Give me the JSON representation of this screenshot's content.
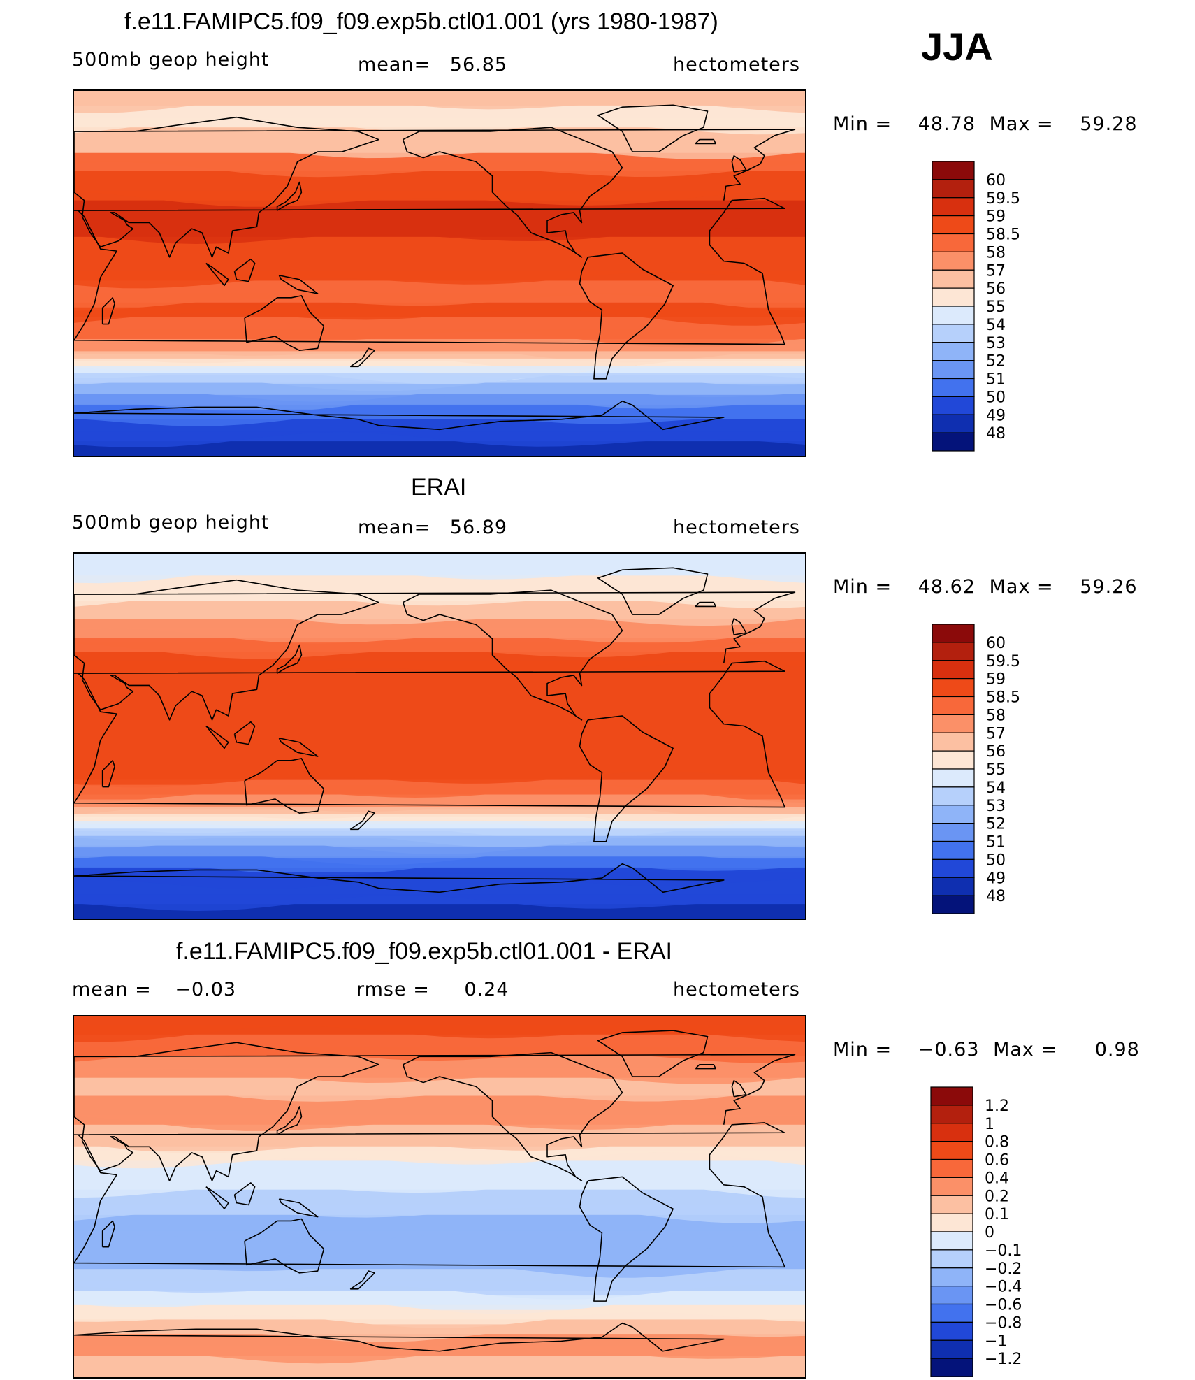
{
  "season": "JJA",
  "panels": [
    {
      "id": "model",
      "title": "f.e11.FAMIPC5.f09_f09.exp5b.ctl01.001 (yrs 1980-1987)",
      "left_label": "500mb geop height",
      "center_label": "mean=",
      "center_value": "56.85",
      "right_label": "hectometers",
      "min_label": "Min =",
      "min_value": "48.78",
      "max_label": "Max =",
      "max_value": "59.28",
      "colorbar": [
        "60",
        "59.5",
        "59",
        "58.5",
        "58",
        "57",
        "56",
        "55",
        "54",
        "53",
        "52",
        "51",
        "50",
        "49",
        "48"
      ],
      "colors": [
        "#8b0a0a",
        "#b3200e",
        "#d8300f",
        "#ee4a18",
        "#f8683a",
        "#fb9068",
        "#fcc0a2",
        "#fde6d5",
        "#dceafc",
        "#b6d0fb",
        "#8fb4f8",
        "#6a95f3",
        "#4272ee",
        "#2148d8",
        "#0f2fb0",
        "#04137a"
      ],
      "bands": [
        {
          "y": 0.0,
          "c": 6
        },
        {
          "y": 0.04,
          "c": 7
        },
        {
          "y": 0.1,
          "c": 6
        },
        {
          "y": 0.17,
          "c": 4
        },
        {
          "y": 0.22,
          "c": 3
        },
        {
          "y": 0.3,
          "c": 2
        },
        {
          "y": 0.4,
          "c": 3
        },
        {
          "y": 0.52,
          "c": 4
        },
        {
          "y": 0.58,
          "c": 3
        },
        {
          "y": 0.62,
          "c": 4
        },
        {
          "y": 0.68,
          "c": 5
        },
        {
          "y": 0.72,
          "c": 6
        },
        {
          "y": 0.74,
          "c": 7
        },
        {
          "y": 0.76,
          "c": 8
        },
        {
          "y": 0.78,
          "c": 9
        },
        {
          "y": 0.8,
          "c": 10
        },
        {
          "y": 0.83,
          "c": 11
        },
        {
          "y": 0.86,
          "c": 12
        },
        {
          "y": 0.9,
          "c": 13
        },
        {
          "y": 0.96,
          "c": 14
        }
      ]
    },
    {
      "id": "obs",
      "title": "ERAI",
      "left_label": "500mb geop height",
      "center_label": "mean=",
      "center_value": "56.89",
      "right_label": "hectometers",
      "min_label": "Min =",
      "min_value": "48.62",
      "max_label": "Max =",
      "max_value": "59.26",
      "colorbar": [
        "60",
        "59.5",
        "59",
        "58.5",
        "58",
        "57",
        "56",
        "55",
        "54",
        "53",
        "52",
        "51",
        "50",
        "49",
        "48"
      ],
      "colors": [
        "#8b0a0a",
        "#b3200e",
        "#d8300f",
        "#ee4a18",
        "#f8683a",
        "#fb9068",
        "#fcc0a2",
        "#fde6d5",
        "#dceafc",
        "#b6d0fb",
        "#8fb4f8",
        "#6a95f3",
        "#4272ee",
        "#2148d8",
        "#0f2fb0",
        "#04137a"
      ],
      "bands": [
        {
          "y": 0.0,
          "c": 8
        },
        {
          "y": 0.06,
          "c": 7
        },
        {
          "y": 0.13,
          "c": 6
        },
        {
          "y": 0.18,
          "c": 5
        },
        {
          "y": 0.23,
          "c": 4
        },
        {
          "y": 0.27,
          "c": 3
        },
        {
          "y": 0.32,
          "c": 3
        },
        {
          "y": 0.62,
          "c": 4
        },
        {
          "y": 0.66,
          "c": 5
        },
        {
          "y": 0.7,
          "c": 6
        },
        {
          "y": 0.72,
          "c": 7
        },
        {
          "y": 0.74,
          "c": 8
        },
        {
          "y": 0.76,
          "c": 9
        },
        {
          "y": 0.78,
          "c": 10
        },
        {
          "y": 0.8,
          "c": 11
        },
        {
          "y": 0.83,
          "c": 12
        },
        {
          "y": 0.86,
          "c": 13
        },
        {
          "y": 0.9,
          "c": 13
        },
        {
          "y": 0.96,
          "c": 14
        }
      ]
    },
    {
      "id": "diff",
      "title": "f.e11.FAMIPC5.f09_f09.exp5b.ctl01.001 - ERAI",
      "left_label": "mean =",
      "left_value": "−0.03",
      "center_label": "rmse =",
      "center_value": "0.24",
      "right_label": "hectometers",
      "min_label": "Min =",
      "min_value": "−0.63",
      "max_label": "Max =",
      "max_value": "0.98",
      "colorbar": [
        "1.2",
        "1",
        "0.8",
        "0.6",
        "0.4",
        "0.2",
        "0.1",
        "0",
        "−0.1",
        "−0.2",
        "−0.4",
        "−0.6",
        "−0.8",
        "−1",
        "−1.2"
      ],
      "colors": [
        "#8b0a0a",
        "#b3200e",
        "#d8300f",
        "#ee4a18",
        "#f8683a",
        "#fb9068",
        "#fcc0a2",
        "#fde6d5",
        "#dceafc",
        "#b6d0fb",
        "#8fb4f8",
        "#6a95f3",
        "#4272ee",
        "#2148d8",
        "#0f2fb0",
        "#04137a"
      ],
      "bands": [
        {
          "y": 0.0,
          "c": 3
        },
        {
          "y": 0.05,
          "c": 4
        },
        {
          "y": 0.11,
          "c": 5
        },
        {
          "y": 0.17,
          "c": 6
        },
        {
          "y": 0.22,
          "c": 5
        },
        {
          "y": 0.3,
          "c": 6
        },
        {
          "y": 0.36,
          "c": 7
        },
        {
          "y": 0.4,
          "c": 8
        },
        {
          "y": 0.48,
          "c": 9
        },
        {
          "y": 0.55,
          "c": 10
        },
        {
          "y": 0.62,
          "c": 10
        },
        {
          "y": 0.7,
          "c": 9
        },
        {
          "y": 0.76,
          "c": 8
        },
        {
          "y": 0.8,
          "c": 7
        },
        {
          "y": 0.84,
          "c": 6
        },
        {
          "y": 0.88,
          "c": 5
        },
        {
          "y": 0.94,
          "c": 6
        }
      ]
    }
  ]
}
